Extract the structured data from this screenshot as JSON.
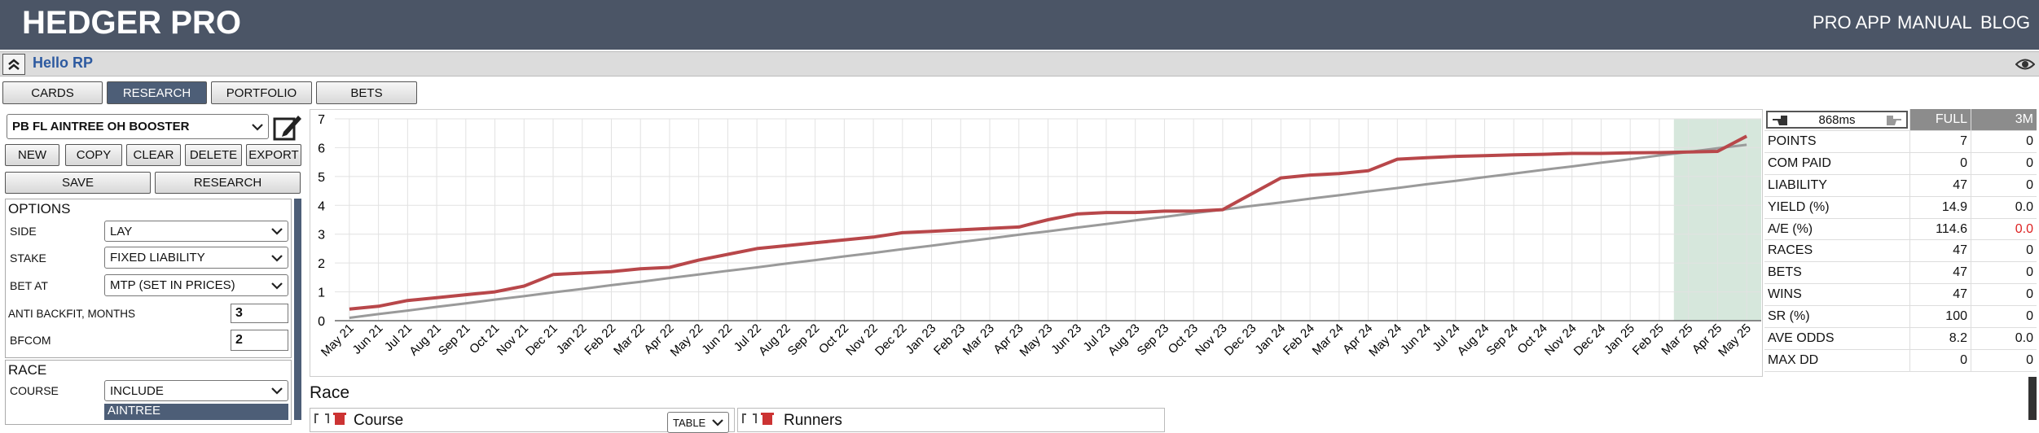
{
  "header": {
    "title": "HEDGER PRO",
    "nav": [
      "PRO APP",
      "MANUAL",
      "BLOG"
    ]
  },
  "greeting": "Hello RP",
  "tabs": [
    "CARDS",
    "RESEARCH",
    "PORTFOLIO",
    "BETS"
  ],
  "active_tab": "RESEARCH",
  "strategy": {
    "name": "PB FL AINTREE OH BOOSTER",
    "buttons": [
      "NEW",
      "COPY",
      "CLEAR",
      "DELETE",
      "EXPORT"
    ],
    "actions": [
      "SAVE",
      "RESEARCH"
    ]
  },
  "options": {
    "title": "OPTIONS",
    "rows": [
      [
        "SIDE",
        "LAY"
      ],
      [
        "STAKE",
        "FIXED LIABILITY"
      ],
      [
        "BET AT",
        "MTP (SET IN PRICES)"
      ],
      [
        "ANTI BACKFIT, MONTHS",
        "3"
      ],
      [
        "BFCOM",
        "2"
      ]
    ]
  },
  "race": {
    "title": "RACE",
    "rows": [
      [
        "COURSE",
        "INCLUDE"
      ]
    ],
    "selected": "AINTREE"
  },
  "chart_data": {
    "type": "line",
    "categories": [
      "May 21",
      "Jun 21",
      "Jul 21",
      "Aug 21",
      "Sep 21",
      "Oct 21",
      "Nov 21",
      "Dec 21",
      "Jan 22",
      "Feb 22",
      "Mar 22",
      "Apr 22",
      "May 22",
      "Jun 22",
      "Jul 22",
      "Aug 22",
      "Sep 22",
      "Oct 22",
      "Nov 22",
      "Dec 22",
      "Jan 23",
      "Feb 23",
      "Mar 23",
      "Apr 23",
      "May 23",
      "Jun 23",
      "Jul 23",
      "Aug 23",
      "Sep 23",
      "Oct 23",
      "Nov 23",
      "Dec 23",
      "Jan 24",
      "Feb 24",
      "Mar 24",
      "Apr 24",
      "May 24",
      "Jun 24",
      "Jul 24",
      "Aug 24",
      "Sep 24",
      "Oct 24",
      "Nov 24",
      "Dec 24",
      "Jan 25",
      "Feb 25",
      "Mar 25",
      "Apr 25",
      "May 25"
    ],
    "series": [
      {
        "color": "#b8474a",
        "values": [
          0.4,
          0.5,
          0.7,
          0.8,
          0.9,
          1.0,
          1.2,
          1.6,
          1.65,
          1.7,
          1.8,
          1.85,
          2.1,
          2.3,
          2.5,
          2.6,
          2.7,
          2.8,
          2.9,
          3.05,
          3.1,
          3.15,
          3.2,
          3.25,
          3.5,
          3.7,
          3.75,
          3.75,
          3.8,
          3.8,
          3.85,
          4.4,
          4.95,
          5.05,
          5.1,
          5.2,
          5.6,
          5.65,
          5.7,
          5.72,
          5.75,
          5.77,
          5.8,
          5.8,
          5.82,
          5.83,
          5.85,
          5.87,
          6.4
        ]
      },
      {
        "color": "#9a9a9a",
        "values": [
          0.1,
          0.23,
          0.35,
          0.48,
          0.6,
          0.73,
          0.85,
          0.98,
          1.1,
          1.23,
          1.35,
          1.48,
          1.6,
          1.73,
          1.85,
          1.98,
          2.1,
          2.23,
          2.35,
          2.48,
          2.6,
          2.73,
          2.85,
          2.98,
          3.1,
          3.23,
          3.35,
          3.48,
          3.6,
          3.73,
          3.85,
          3.98,
          4.1,
          4.23,
          4.35,
          4.48,
          4.6,
          4.73,
          4.85,
          4.98,
          5.1,
          5.23,
          5.35,
          5.48,
          5.6,
          5.73,
          5.85,
          5.98,
          6.1
        ]
      }
    ],
    "ylim": [
      0,
      7
    ],
    "yticks": [
      0,
      1,
      2,
      3,
      4,
      5,
      6,
      7
    ],
    "grid": true,
    "shade": {
      "from": "Mar 25",
      "to": "May 25",
      "color": "#d6e7dc"
    }
  },
  "stats": {
    "timing": "868ms",
    "columns": [
      "FULL",
      "3M"
    ],
    "rows": [
      [
        "POINTS",
        "7",
        "0"
      ],
      [
        "COM PAID",
        "0",
        "0"
      ],
      [
        "LIABILITY",
        "47",
        "0"
      ],
      [
        "YIELD (%)",
        "14.9",
        "0.0"
      ],
      [
        "A/E (%)",
        "114.6",
        "0.0"
      ],
      [
        "RACES",
        "47",
        "0"
      ],
      [
        "BETS",
        "47",
        "0"
      ],
      [
        "WINS",
        "47",
        "0"
      ],
      [
        "SR (%)",
        "100",
        "0"
      ],
      [
        "AVE ODDS",
        "8.2",
        "0.0"
      ],
      [
        "MAX DD",
        "0",
        "0"
      ]
    ]
  },
  "bottom": {
    "title": "Race",
    "panels": [
      {
        "title": "Course",
        "control": "TABLE"
      },
      {
        "title": "Runners"
      }
    ]
  }
}
